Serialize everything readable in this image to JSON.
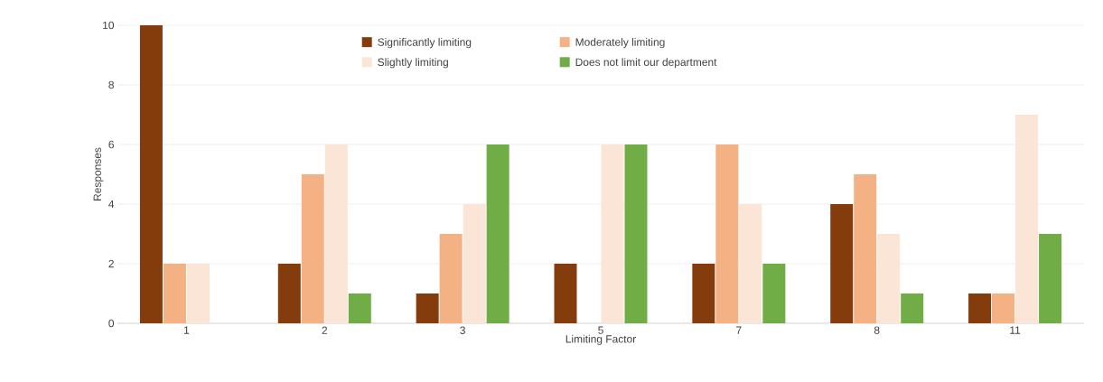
{
  "chart_data": {
    "type": "bar",
    "xlabel": "Limiting Factor",
    "ylabel": "Responses",
    "categories": [
      "1",
      "2",
      "3",
      "5",
      "7",
      "8",
      "11"
    ],
    "series": [
      {
        "name": "Significantly limiting",
        "color": "#843c0c",
        "values": [
          10,
          2,
          1,
          2,
          2,
          4,
          1
        ]
      },
      {
        "name": "Moderately limiting",
        "color": "#f4b183",
        "values": [
          2,
          5,
          3,
          0,
          6,
          5,
          1
        ]
      },
      {
        "name": "Slightly limiting",
        "color": "#fbe5d6",
        "values": [
          2,
          6,
          4,
          6,
          4,
          3,
          7
        ]
      },
      {
        "name": "Does not limit our department",
        "color": "#70ad47",
        "values": [
          0,
          1,
          6,
          6,
          2,
          1,
          3
        ]
      }
    ],
    "ylim": [
      0,
      10
    ],
    "yticks": [
      0,
      2,
      4,
      6,
      8,
      10
    ],
    "grid": "y",
    "legend": "top"
  }
}
